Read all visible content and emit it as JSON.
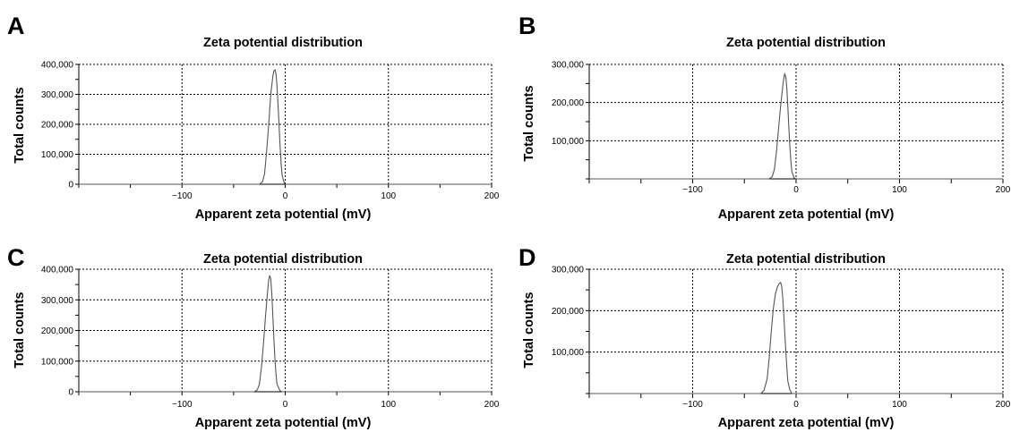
{
  "chart_data": [
    {
      "panel_label": "A",
      "type": "line",
      "title": "Zeta potential distribution",
      "xlabel": "Apparent zeta potential (mV)",
      "ylabel": "Total counts",
      "xlim": [
        -200,
        200
      ],
      "ylim": [
        0,
        400000
      ],
      "xticks": [
        -100,
        0,
        100,
        200
      ],
      "xtick_labels": [
        "−100",
        "0",
        "100",
        "200"
      ],
      "yticks": [
        0,
        100000,
        200000,
        300000,
        400000
      ],
      "ytick_labels": [
        "0",
        "100,000",
        "200,000",
        "300,000",
        "400,000"
      ],
      "grid": true,
      "series": [
        {
          "color": "#555555",
          "x": [
            -200,
            -25,
            -22,
            -20,
            -18,
            -16,
            -14,
            -12,
            -11,
            -10,
            -9,
            -8,
            -7,
            -6,
            -5,
            -4,
            -3,
            -1,
            0,
            200
          ],
          "y": [
            0,
            0,
            8000,
            35000,
            110000,
            200000,
            300000,
            360000,
            378000,
            382000,
            370000,
            330000,
            270000,
            200000,
            130000,
            70000,
            30000,
            4000,
            0,
            0
          ]
        }
      ]
    },
    {
      "panel_label": "B",
      "type": "line",
      "title": "Zeta potential distribution",
      "xlabel": "Apparent zeta potential (mV)",
      "ylabel": "Total counts",
      "xlim": [
        -200,
        200
      ],
      "ylim": [
        0,
        300000
      ],
      "xticks": [
        -100,
        0,
        100,
        200
      ],
      "xtick_labels": [
        "−100",
        "0",
        "100",
        "200"
      ],
      "yticks": [
        100000,
        200000,
        300000
      ],
      "ytick_labels": [
        "100,000",
        "200,000",
        "300,000"
      ],
      "grid": true,
      "series": [
        {
          "color": "#555555",
          "x": [
            -200,
            -26,
            -23,
            -21,
            -19,
            -17,
            -15,
            -13,
            -12,
            -11,
            -10,
            -9,
            -8,
            -7,
            -6,
            -5,
            -4,
            -2,
            0,
            200
          ],
          "y": [
            0,
            0,
            6000,
            25000,
            70000,
            130000,
            190000,
            240000,
            262000,
            275000,
            268000,
            240000,
            190000,
            135000,
            85000,
            45000,
            18000,
            3000,
            0,
            0
          ]
        }
      ]
    },
    {
      "panel_label": "C",
      "type": "line",
      "title": "Zeta potential distribution",
      "xlabel": "Apparent zeta potential (mV)",
      "ylabel": "Total counts",
      "xlim": [
        -200,
        200
      ],
      "ylim": [
        0,
        400000
      ],
      "xticks": [
        -100,
        0,
        100,
        200
      ],
      "xtick_labels": [
        "−100",
        "0",
        "100",
        "200"
      ],
      "yticks": [
        0,
        100000,
        200000,
        300000,
        400000
      ],
      "ytick_labels": [
        "0",
        "100,000",
        "200,000",
        "300,000",
        "400,000"
      ],
      "grid": true,
      "series": [
        {
          "color": "#555555",
          "x": [
            -200,
            -30,
            -27,
            -25,
            -23,
            -21,
            -19,
            -17,
            -16,
            -15,
            -14,
            -13,
            -12,
            -11,
            -10,
            -9,
            -8,
            -5,
            -3,
            200
          ],
          "y": [
            0,
            0,
            6000,
            25000,
            80000,
            160000,
            250000,
            330000,
            365000,
            380000,
            368000,
            320000,
            250000,
            175000,
            110000,
            60000,
            25000,
            3000,
            0,
            0
          ]
        }
      ]
    },
    {
      "panel_label": "D",
      "type": "line",
      "title": "Zeta potential distribution",
      "xlabel": "Apparent zeta potential (mV)",
      "ylabel": "Total counts",
      "xlim": [
        -200,
        200
      ],
      "ylim": [
        0,
        300000
      ],
      "xticks": [
        -100,
        0,
        100,
        200
      ],
      "xtick_labels": [
        "−100",
        "0",
        "100",
        "200"
      ],
      "yticks": [
        100000,
        200000,
        300000
      ],
      "ytick_labels": [
        "100,000",
        "200,000",
        "300,000"
      ],
      "grid": true,
      "series": [
        {
          "color": "#555555",
          "x": [
            -200,
            -34,
            -31,
            -28,
            -26,
            -24,
            -22,
            -20,
            -18,
            -16,
            -15,
            -14,
            -13,
            -12,
            -11,
            -10,
            -9,
            -8,
            -6,
            -4,
            200
          ],
          "y": [
            0,
            0,
            8000,
            35000,
            85000,
            150000,
            205000,
            240000,
            258000,
            266000,
            268000,
            260000,
            235000,
            195000,
            150000,
            105000,
            65000,
            30000,
            8000,
            0,
            0
          ]
        }
      ]
    }
  ]
}
